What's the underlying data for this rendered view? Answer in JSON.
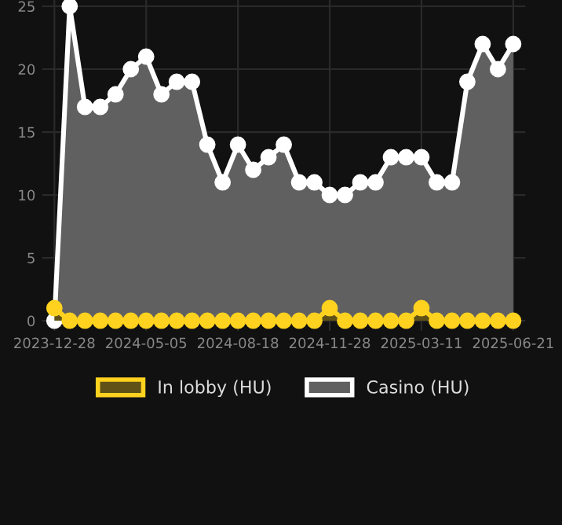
{
  "chart_data": {
    "type": "area",
    "categories": [
      "2023-12-28",
      null,
      null,
      null,
      null,
      null,
      "2024-05-05",
      null,
      null,
      null,
      null,
      null,
      "2024-08-18",
      null,
      null,
      null,
      null,
      null,
      "2024-11-28",
      null,
      null,
      null,
      null,
      null,
      "2025-03-11",
      null,
      null,
      null,
      null,
      null,
      "2025-06-21"
    ],
    "series": [
      {
        "name": "In lobby (HU)",
        "color": "#ffd21f",
        "values": [
          1,
          0,
          0,
          0,
          0,
          0,
          0,
          0,
          0,
          0,
          0,
          0,
          0,
          0,
          0,
          0,
          0,
          0,
          1,
          0,
          0,
          0,
          0,
          0,
          1,
          0,
          0,
          0,
          0,
          0,
          0
        ]
      },
      {
        "name": "Casino (HU)",
        "color": "#ffffff",
        "values": [
          0,
          25,
          17,
          17,
          18,
          20,
          21,
          18,
          19,
          19,
          14,
          11,
          14,
          12,
          13,
          14,
          11,
          11,
          10,
          10,
          11,
          11,
          13,
          13,
          13,
          11,
          11,
          19,
          22,
          20,
          22
        ]
      }
    ],
    "ylim": [
      -0.8,
      25.5
    ],
    "yticks": [
      0,
      5,
      10,
      15,
      20,
      25
    ],
    "grid": true,
    "legend": "bottom",
    "marker": "circle",
    "line_style": "solid"
  }
}
